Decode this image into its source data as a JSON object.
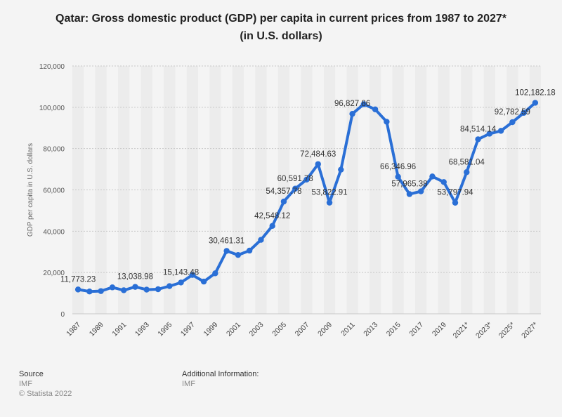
{
  "title_line1": "Qatar: Gross domestic product (GDP) per capita in current prices from 1987 to 2027*",
  "title_line2": "(in U.S. dollars)",
  "footer": {
    "source_head": "Source",
    "source_value": "IMF",
    "copyright": "© Statista 2022",
    "info_head": "Additional Information:",
    "info_value": "IMF"
  },
  "colors": {
    "line": "#2a6fd6",
    "band": "#ececec",
    "grid": "#c8c8c8"
  },
  "chart_data": {
    "type": "line",
    "ylabel": "GDP per capita in U.S. dollars",
    "ylim": [
      0,
      120000
    ],
    "yticks": [
      "0",
      "20,000",
      "40,000",
      "60,000",
      "80,000",
      "100,000",
      "120,000"
    ],
    "ytick_values": [
      0,
      20000,
      40000,
      60000,
      80000,
      100000,
      120000
    ],
    "x": [
      "1987",
      "1988",
      "1989",
      "1990",
      "1991",
      "1992",
      "1993",
      "1994",
      "1995",
      "1996",
      "1997",
      "1998",
      "1999",
      "2000",
      "2001",
      "2002",
      "2003",
      "2004",
      "2005",
      "2006",
      "2007",
      "2008",
      "2009",
      "2010",
      "2011",
      "2012",
      "2013",
      "2014",
      "2015",
      "2016",
      "2017",
      "2018",
      "2019",
      "2020",
      "2021*",
      "2022*",
      "2023*",
      "2024*",
      "2025*",
      "2026*",
      "2027*"
    ],
    "xtick_labels": [
      "1987",
      "1989",
      "1991",
      "1993",
      "1995",
      "1997",
      "1999",
      "2001",
      "2003",
      "2005",
      "2007",
      "2009",
      "2011",
      "2013",
      "2015",
      "2017",
      "2019",
      "2021*",
      "2023*",
      "2025*",
      "2027*"
    ],
    "values": [
      11773.23,
      10800,
      11000,
      12800,
      11400,
      13038.98,
      11700,
      11900,
      13400,
      15143.48,
      18800,
      15600,
      19600,
      30461.31,
      28500,
      30600,
      35800,
      42548.12,
      54357.78,
      60591.78,
      65000,
      72484.63,
      53822.91,
      69800,
      96827.86,
      101500,
      99000,
      93000,
      66346.96,
      57965.38,
      59300,
      66500,
      63800,
      53797.94,
      68581.04,
      84514.14,
      87200,
      88600,
      92782.59,
      97300,
      102182.18
    ],
    "data_labels": [
      {
        "index": 0,
        "text": "11,773.23"
      },
      {
        "index": 5,
        "text": "13,038.98"
      },
      {
        "index": 9,
        "text": "15,143.48"
      },
      {
        "index": 13,
        "text": "30,461.31"
      },
      {
        "index": 17,
        "text": "42,548.12"
      },
      {
        "index": 18,
        "text": "54,357.78"
      },
      {
        "index": 19,
        "text": "60,591.78"
      },
      {
        "index": 21,
        "text": "72,484.63"
      },
      {
        "index": 22,
        "text": "53,822.91"
      },
      {
        "index": 24,
        "text": "96,827.86"
      },
      {
        "index": 28,
        "text": "66,346.96"
      },
      {
        "index": 29,
        "text": "57,965.38"
      },
      {
        "index": 33,
        "text": "53,797.94"
      },
      {
        "index": 34,
        "text": "68,581.04"
      },
      {
        "index": 35,
        "text": "84,514.14"
      },
      {
        "index": 38,
        "text": "92,782.59"
      },
      {
        "index": 40,
        "text": "102,182.18"
      }
    ],
    "grid": true
  }
}
